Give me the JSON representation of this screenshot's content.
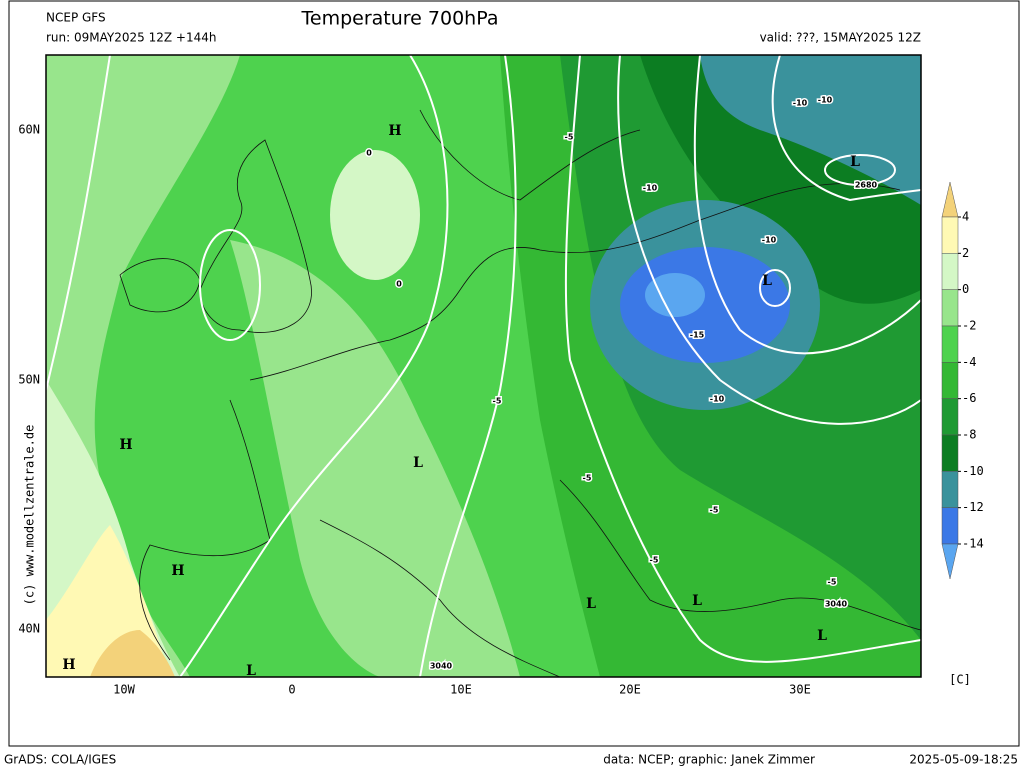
{
  "header": {
    "model": "NCEP GFS",
    "run": "run: 09MAY2025 12Z +144h",
    "title": "Temperature 700hPa",
    "valid": "valid: ???, 15MAY2025 12Z"
  },
  "map": {
    "lon_ticks": [
      "10W",
      "0",
      "10E",
      "20E",
      "30E"
    ],
    "lat_ticks": [
      "60N",
      "50N",
      "40N"
    ],
    "contour_labels": [
      0,
      0,
      -5,
      -10,
      -10,
      -10,
      -10,
      2680,
      -15,
      -10,
      -5,
      -5,
      -5,
      -5,
      -5,
      3040,
      3040
    ],
    "pressure_centers": [
      "H",
      "L",
      "L",
      "H",
      "L",
      "H",
      "L",
      "L",
      "L",
      "H",
      "L"
    ],
    "copyright": "(c) www.modellzentrale.de"
  },
  "colorbar": {
    "levels": [
      4,
      2,
      0,
      -2,
      -4,
      -6,
      -8,
      -10,
      -12,
      -14
    ],
    "colors": [
      "#f3d27a",
      "#fff9b4",
      "#d4f7c6",
      "#98e58c",
      "#4ed24e",
      "#34b834",
      "#1f9a33",
      "#0c7d22",
      "#3a929c",
      "#3b78e6",
      "#5aa6f0"
    ],
    "unit": "[C]"
  },
  "footer": {
    "software": "GrADS: COLA/IGES",
    "credits": "data: NCEP; graphic: Janek Zimmer",
    "timestamp": "2025-05-09-18:25"
  }
}
